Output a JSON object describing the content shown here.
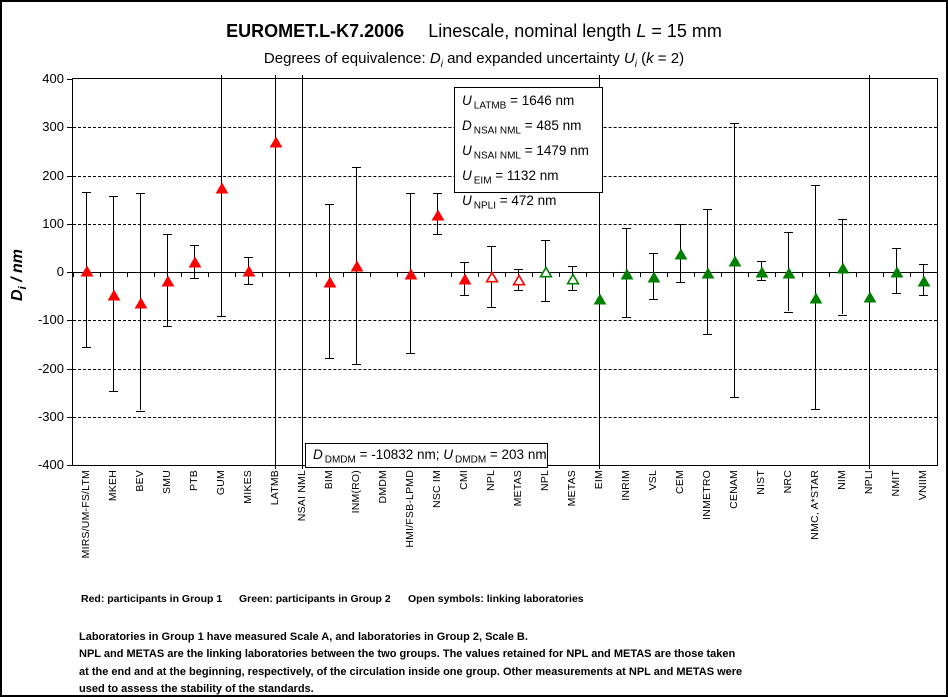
{
  "colors": {
    "group1": "#FF0000",
    "group2": "#008000",
    "axis": "#000000",
    "background": "#FFFFFF"
  },
  "chart_data": {
    "type": "scatter",
    "title": {
      "code": "EUROMET.L-K7.2006",
      "desc_pre": "Linescale, nominal length ",
      "desc_var": "L",
      "desc_post": " = 15 mm"
    },
    "subtitle": {
      "pre": "Degrees of equivalence: ",
      "d_var": "D",
      "d_sub": "i",
      "mid": " and expanded uncertainty ",
      "u_var": "U",
      "u_sub": "i",
      "paren": " (",
      "k_var": "k",
      "post": " = 2)"
    },
    "ylabel_parts": {
      "var": "D",
      "sub": "i",
      "rest": " / nm"
    },
    "ylim": [
      -400,
      400
    ],
    "ytick_step": 100,
    "grid": "horizontal dashed lines at ±100, ±200, ±300 nm",
    "units": "nm",
    "labs": [
      {
        "label": "MIRS/UM-FS/LTM",
        "D": 5,
        "U": 160,
        "group": 1,
        "open": false
      },
      {
        "label": "MKEH",
        "D": -45,
        "U": 202,
        "group": 1,
        "open": false
      },
      {
        "label": "BEV",
        "D": -62,
        "U": 225,
        "group": 1,
        "open": false
      },
      {
        "label": "SMU",
        "D": -17,
        "U": 95,
        "group": 1,
        "open": false
      },
      {
        "label": "PTB",
        "D": 22,
        "U": 34,
        "group": 1,
        "open": false
      },
      {
        "label": "GUM",
        "D": 177,
        "U": 268,
        "group": 1,
        "open": false
      },
      {
        "label": "MIKES",
        "D": 4,
        "U": 28,
        "group": 1,
        "open": false
      },
      {
        "label": "LATMB",
        "D": 272,
        "U": 1646,
        "group": 1,
        "open": false
      },
      {
        "label": "NSAI NML",
        "D": 485,
        "U": 1479,
        "group": 1,
        "open": false
      },
      {
        "label": "BIM",
        "D": -18,
        "U": 160,
        "group": 1,
        "open": false
      },
      {
        "label": "INM(RO)",
        "D": 14,
        "U": 204,
        "group": 1,
        "open": false
      },
      {
        "label": "DMDM",
        "D": -10832,
        "U": 203,
        "group": 1,
        "open": false
      },
      {
        "label": "HMI/FSB-LPMD",
        "D": -2,
        "U": 166,
        "group": 1,
        "open": false
      },
      {
        "label": "NSC IM",
        "D": 121,
        "U": 43,
        "group": 1,
        "open": false
      },
      {
        "label": "CMI",
        "D": -13,
        "U": 34,
        "group": 1,
        "open": false
      },
      {
        "label": "NPL",
        "D": -9,
        "U": 63,
        "group": 1,
        "open": true
      },
      {
        "label": "METAS",
        "D": -15,
        "U": 22,
        "group": 1,
        "open": true
      },
      {
        "label": "NPL",
        "D": 3,
        "U": 63,
        "group": 2,
        "open": true
      },
      {
        "label": "METAS",
        "D": -12,
        "U": 25,
        "group": 2,
        "open": true
      },
      {
        "label": "EIM",
        "D": -54,
        "U": 1132,
        "group": 2,
        "open": false
      },
      {
        "label": "INRIM",
        "D": -1,
        "U": 92,
        "group": 2,
        "open": false
      },
      {
        "label": "VSL",
        "D": -8,
        "U": 48,
        "group": 2,
        "open": false
      },
      {
        "label": "CEM",
        "D": 40,
        "U": 60,
        "group": 2,
        "open": false
      },
      {
        "label": "INMETRO",
        "D": 1,
        "U": 129,
        "group": 2,
        "open": false
      },
      {
        "label": "CENAM",
        "D": 25,
        "U": 284,
        "group": 2,
        "open": false
      },
      {
        "label": "NIST",
        "D": 3,
        "U": 19,
        "group": 2,
        "open": false
      },
      {
        "label": "NRC",
        "D": 0,
        "U": 82,
        "group": 2,
        "open": false
      },
      {
        "label": "NMC, A*STAR",
        "D": -51,
        "U": 232,
        "group": 2,
        "open": false
      },
      {
        "label": "NIM",
        "D": 11,
        "U": 99,
        "group": 2,
        "open": false
      },
      {
        "label": "NPLI",
        "D": -50,
        "U": 472,
        "group": 2,
        "open": false
      },
      {
        "label": "NMIT",
        "D": 3,
        "U": 47,
        "group": 2,
        "open": false
      },
      {
        "label": "VNIIM",
        "D": -16,
        "U": 32,
        "group": 2,
        "open": false
      }
    ],
    "annotations": {
      "box1": [
        {
          "var": "U",
          "sub": "LATMB",
          "rest": " = 1646 nm"
        },
        {
          "var": "D",
          "sub": "NSAI NML",
          "rest": " = 485 nm"
        },
        {
          "var": "U",
          "sub": "NSAI NML",
          "rest": " = 1479 nm"
        },
        {
          "var": "U",
          "sub": "EIM",
          "rest": " = 1132 nm"
        },
        {
          "var": "U",
          "sub": "NPLI",
          "rest": " = 472 nm"
        }
      ],
      "box2": [
        {
          "var": "D",
          "sub": "DMDM",
          "rest": " = -10832 nm; "
        },
        {
          "var": "U",
          "sub": "DMDM",
          "rest": " = 203 nm"
        }
      ]
    },
    "legend": {
      "group1": "Red: participants in Group 1",
      "group2": "Green: participants in Group 2",
      "open": "Open symbols: linking laboratories"
    },
    "notes": [
      "Laboratories in Group 1 have measured Scale A, and laboratories in Group 2, Scale B.",
      "NPL and METAS are the linking laboratories between the two groups. The values retained for NPL and METAS are those taken",
      "at the end and at the beginning, respectively, of the circulation inside one group. Other measurements at NPL and METAS were",
      "used to assess the stability of the standards."
    ]
  }
}
